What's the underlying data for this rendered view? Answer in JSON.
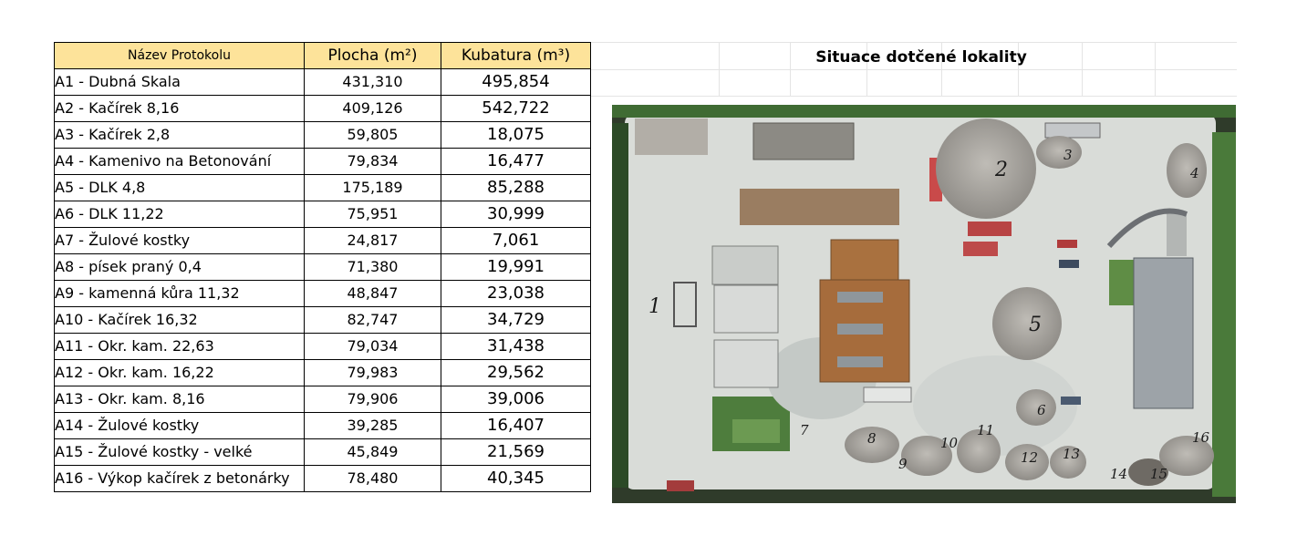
{
  "table": {
    "headers": {
      "name": "Název Protokolu",
      "area": "Plocha (m²)",
      "volume": "Kubatura (m³)"
    },
    "rows": [
      {
        "name": "A1 - Dubná Skala",
        "area": "431,310",
        "volume": "495,854"
      },
      {
        "name": "A2 - Kačírek 8,16",
        "area": "409,126",
        "volume": "542,722"
      },
      {
        "name": "A3 - Kačírek 2,8",
        "area": "59,805",
        "volume": "18,075"
      },
      {
        "name": "A4 - Kamenivo na Betonování",
        "area": "79,834",
        "volume": "16,477"
      },
      {
        "name": "A5 - DLK 4,8",
        "area": "175,189",
        "volume": "85,288"
      },
      {
        "name": "A6 - DLK 11,22",
        "area": "75,951",
        "volume": "30,999"
      },
      {
        "name": "A7 - Žulové kostky",
        "area": "24,817",
        "volume": "7,061"
      },
      {
        "name": "A8 - písek praný 0,4",
        "area": "71,380",
        "volume": "19,991"
      },
      {
        "name": "A9 - kamenná kůra 11,32",
        "area": "48,847",
        "volume": "23,038"
      },
      {
        "name": "A10 - Kačírek 16,32",
        "area": "82,747",
        "volume": "34,729"
      },
      {
        "name": "A11 - Okr. kam. 22,63",
        "area": "79,034",
        "volume": "31,438"
      },
      {
        "name": "A12 - Okr. kam. 16,22",
        "area": "79,983",
        "volume": "29,562"
      },
      {
        "name": "A13 - Okr. kam. 8,16",
        "area": "79,906",
        "volume": "39,006"
      },
      {
        "name": "A14 - Žulové kostky",
        "area": "39,285",
        "volume": "16,407"
      },
      {
        "name": "A15 - Žulové kostky - velké",
        "area": "45,849",
        "volume": "21,569"
      },
      {
        "name": "A16 - Výkop kačírek z betonárky",
        "area": "78,480",
        "volume": "40,345"
      }
    ]
  },
  "map": {
    "title": "Situace dotčené lokality",
    "pile_numbers": [
      "1",
      "2",
      "3",
      "4",
      "5",
      "6",
      "7",
      "8",
      "9",
      "10",
      "11",
      "12",
      "13",
      "14",
      "15",
      "16"
    ]
  },
  "colors": {
    "header_fill": "#fde39a",
    "border": "#000000",
    "ground": "#d9dcd8",
    "grass": "#4a7a3a",
    "roof": "#a9713f"
  }
}
